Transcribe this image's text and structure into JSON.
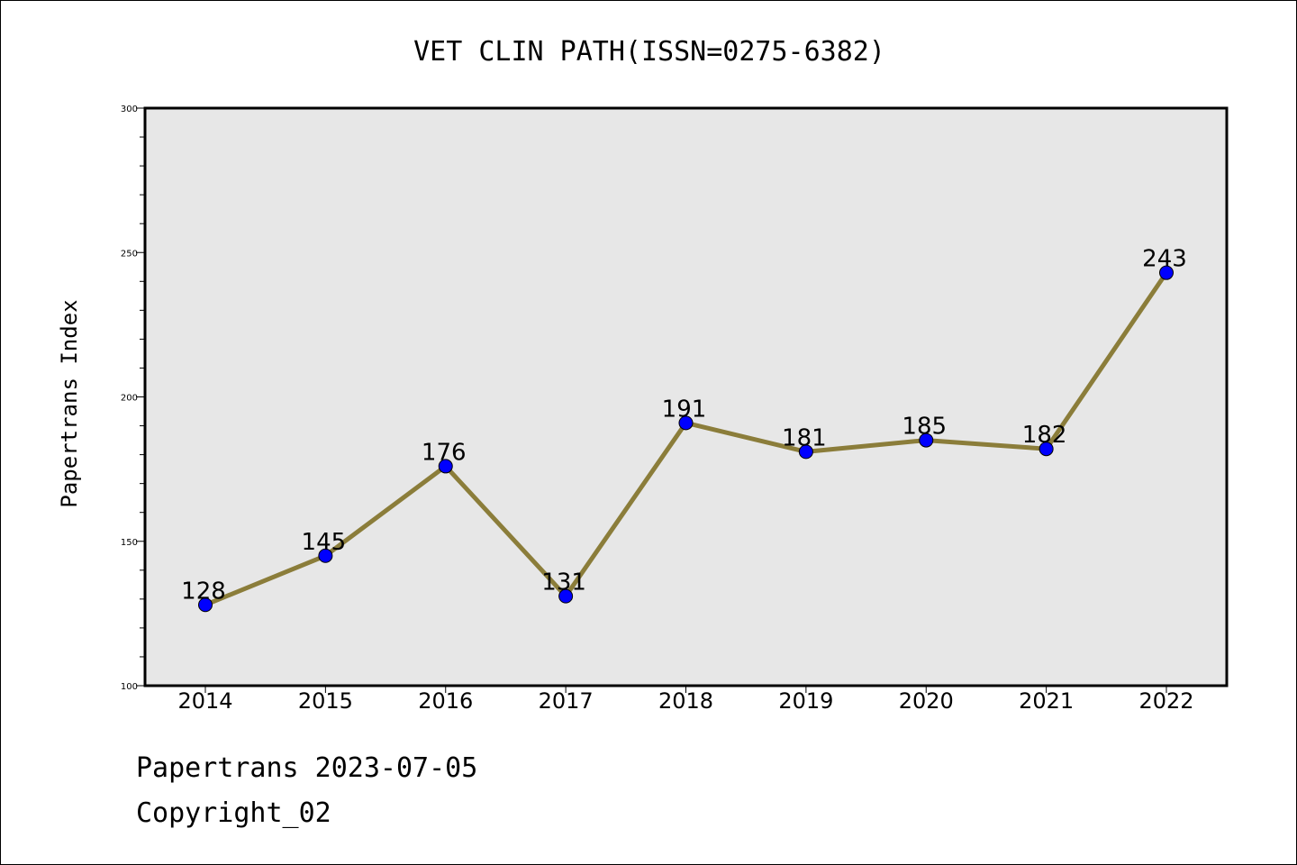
{
  "chart_data": {
    "type": "line",
    "title": "VET CLIN PATH(ISSN=0275-6382)",
    "xlabel": "",
    "ylabel": "Papertrans Index",
    "categories": [
      "2014",
      "2015",
      "2016",
      "2017",
      "2018",
      "2019",
      "2020",
      "2021",
      "2022"
    ],
    "series": [
      {
        "values": [
          128,
          145,
          176,
          131,
          191,
          181,
          185,
          182,
          243
        ]
      }
    ],
    "data_labels": [
      "128",
      "145",
      "176",
      "131",
      "191",
      "181",
      "185",
      "182",
      "243"
    ],
    "ylim": [
      100,
      300
    ],
    "yticks": [
      "100",
      "150",
      "200",
      "250",
      "300"
    ],
    "grid": false,
    "legend": "none",
    "colors": {
      "line": "#8b7d3a",
      "marker": "#0000ff",
      "plot_background": "#e7e7e7"
    }
  },
  "footer": {
    "line1": "Papertrans 2023-07-05",
    "line2": "Copyright_02"
  }
}
